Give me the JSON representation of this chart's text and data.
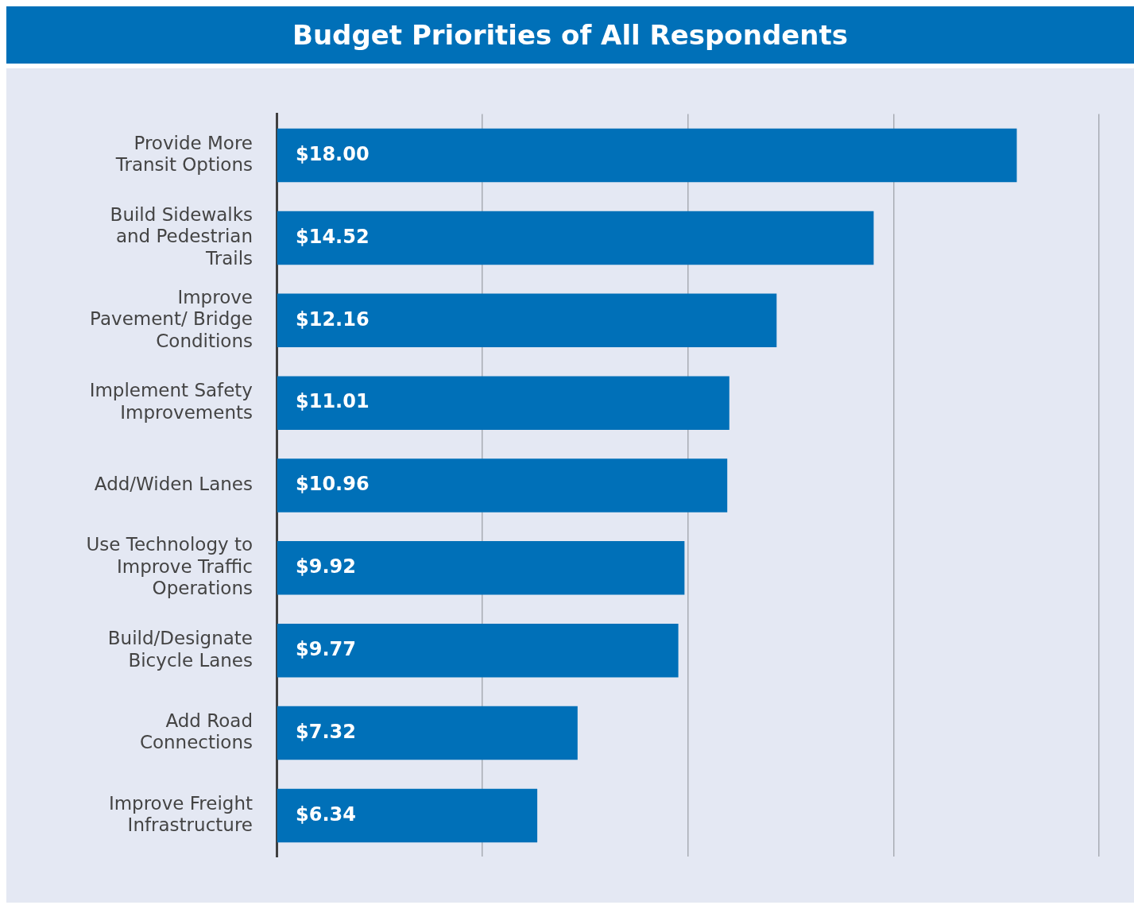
{
  "chart_data": {
    "type": "bar",
    "orientation": "horizontal",
    "title": "Budget Priorities of All Respondents",
    "categories": [
      "Provide More Transit Options",
      "Build Sidewalks and Pedestrian Trails",
      "Improve Pavement/ Bridge Conditions",
      "Implement Safety Improvements",
      "Add/Widen Lanes",
      "Use Technology to Improve Traffic Operations",
      "Build/Designate Bicycle Lanes",
      "Add Road Connections",
      "Improve Freight Infrastructure"
    ],
    "values": [
      18.0,
      14.52,
      12.16,
      11.01,
      10.96,
      9.92,
      9.77,
      7.32,
      6.34
    ],
    "value_labels": [
      "$18.00",
      "$14.52",
      "$12.16",
      "$11.01",
      "$10.96",
      "$9.92",
      "$9.77",
      "$7.32",
      "$6.34"
    ],
    "color": "#0070b8",
    "xlim": [
      0,
      20
    ],
    "xticks": [
      {
        "value": 0,
        "label": null
      },
      {
        "value": 5,
        "label": null
      },
      {
        "value": 10,
        "label": null
      },
      {
        "value": 15,
        "label": null
      },
      {
        "value": 20,
        "label": null
      }
    ],
    "grid": "x",
    "tick_labels": "y"
  }
}
